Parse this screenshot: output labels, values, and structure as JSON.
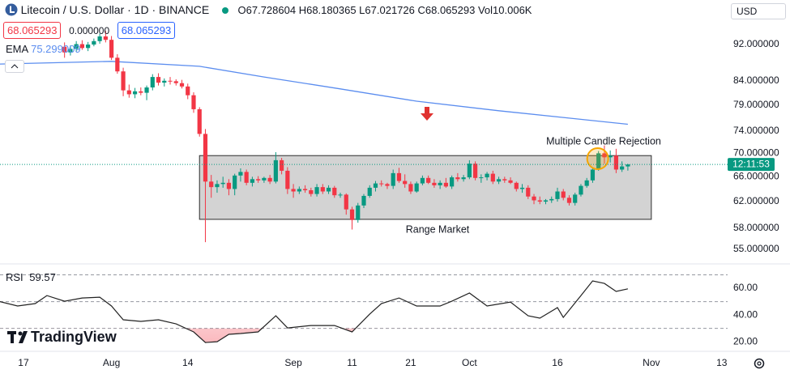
{
  "header": {
    "title": "Litecoin / U.S. Dollar · 1D · BINANCE",
    "ohlc_labels": [
      "O",
      "H",
      "L",
      "C",
      "Vol"
    ],
    "volume": "10.006K",
    "spread": {
      "value": 0,
      "label": "0.000000"
    },
    "currency": "USD",
    "countdown": "12:11:53",
    "brand": "TradingView"
  },
  "chart_data": [
    {
      "type": "candlestick",
      "log": true,
      "up_color": "#089981",
      "down_color": "#f23645",
      "xlim": [
        "07-13",
        "11-14"
      ],
      "xticks": [
        {
          "value": "07-17",
          "label": "17"
        },
        {
          "value": "08-01",
          "label": "Aug"
        },
        {
          "value": "08-14",
          "label": "14"
        },
        {
          "value": "09-01",
          "label": "Sep"
        },
        {
          "value": "09-11",
          "label": "11"
        },
        {
          "value": "09-21",
          "label": "21"
        },
        {
          "value": "10-01",
          "label": "Oct"
        },
        {
          "value": "10-16",
          "label": "16"
        },
        {
          "value": "11-01",
          "label": "Nov"
        },
        {
          "value": "11-13",
          "label": "13"
        }
      ],
      "ylim": [
        53.45,
        102.9
      ],
      "yticks": [
        {
          "value": 92,
          "label": "92.000000"
        },
        {
          "value": 84,
          "label": "84.000000"
        },
        {
          "value": 79,
          "label": "79.000000"
        },
        {
          "value": 74,
          "label": "74.000000"
        },
        {
          "value": 70,
          "label": "70.000000"
        },
        {
          "value": 66,
          "label": "66.000000"
        },
        {
          "value": 62,
          "label": "62.000000"
        },
        {
          "value": 58,
          "label": "58.000000"
        },
        {
          "value": 55,
          "label": "55.000000"
        }
      ],
      "x": [
        "07-24",
        "07-25",
        "07-26",
        "07-27",
        "07-28",
        "07-29",
        "07-30",
        "07-31",
        "08-01",
        "08-02",
        "08-03",
        "08-04",
        "08-05",
        "08-06",
        "08-07",
        "08-08",
        "08-09",
        "08-10",
        "08-11",
        "08-12",
        "08-13",
        "08-14",
        "08-15",
        "08-16",
        "08-17",
        "08-18",
        "08-19",
        "08-20",
        "08-21",
        "08-22",
        "08-23",
        "08-24",
        "08-25",
        "08-26",
        "08-27",
        "08-28",
        "08-29",
        "08-30",
        "08-31",
        "09-01",
        "09-02",
        "09-03",
        "09-04",
        "09-05",
        "09-06",
        "09-07",
        "09-08",
        "09-09",
        "09-10",
        "09-11",
        "09-12",
        "09-13",
        "09-14",
        "09-15",
        "09-16",
        "09-17",
        "09-18",
        "09-19",
        "09-20",
        "09-21",
        "09-22",
        "09-23",
        "09-24",
        "09-25",
        "09-26",
        "09-27",
        "09-28",
        "09-29",
        "09-30",
        "10-01",
        "10-02",
        "10-03",
        "10-04",
        "10-05",
        "10-06",
        "10-07",
        "10-08",
        "10-09",
        "10-10",
        "10-11",
        "10-12",
        "10-13",
        "10-14",
        "10-15",
        "10-16",
        "10-17",
        "10-18",
        "10-19",
        "10-20",
        "10-21",
        "10-22",
        "10-23",
        "10-24",
        "10-25",
        "10-26",
        "10-27",
        "10-28"
      ],
      "open": [
        91.5,
        90.2,
        91.0,
        92.1,
        91.2,
        92.0,
        92.8,
        93.9,
        93.1,
        89.0,
        86.0,
        82.0,
        81.2,
        81.8,
        81.5,
        82.6,
        84.8,
        83.6,
        84.0,
        83.9,
        83.5,
        82.8,
        81.0,
        78.2,
        73.5,
        65.2,
        64.3,
        64.8,
        65.0,
        64.0,
        66.2,
        66.8,
        65.0,
        65.6,
        65.4,
        65.8,
        65.2,
        68.8,
        67.0,
        64.0,
        63.6,
        64.0,
        63.8,
        63.2,
        64.3,
        63.6,
        64.2,
        63.0,
        63.1,
        60.8,
        59.2,
        61.4,
        62.9,
        64.2,
        64.9,
        64.8,
        64.5,
        66.6,
        65.3,
        64.8,
        63.6,
        64.9,
        65.8,
        65.0,
        64.6,
        65.0,
        64.4,
        65.9,
        65.6,
        65.9,
        68.2,
        65.8,
        65.9,
        66.5,
        65.2,
        65.6,
        65.4,
        65.0,
        64.0,
        64.2,
        62.8,
        62.2,
        62.0,
        62.2,
        62.4,
        63.6,
        62.6,
        61.8,
        63.1,
        64.5,
        65.4,
        67.2,
        70.0,
        69.3,
        69.6,
        67.2,
        67.728604
      ],
      "high": [
        92.5,
        91.8,
        92.8,
        93.0,
        92.6,
        93.4,
        94.6,
        95.2,
        94.0,
        89.8,
        86.8,
        83.2,
        82.5,
        82.6,
        83.0,
        85.4,
        85.6,
        84.5,
        84.8,
        84.3,
        84.2,
        83.4,
        81.6,
        78.6,
        74.4,
        66.3,
        65.4,
        66.0,
        65.6,
        66.5,
        67.4,
        67.2,
        66.0,
        66.1,
        66.0,
        66.3,
        70.2,
        69.2,
        67.6,
        64.8,
        64.4,
        64.6,
        64.2,
        64.8,
        64.8,
        64.6,
        64.5,
        63.4,
        63.3,
        61.2,
        61.8,
        63.2,
        64.6,
        65.3,
        65.4,
        65.0,
        67.2,
        67.5,
        66.4,
        65.2,
        65.2,
        66.2,
        66.2,
        65.6,
        65.4,
        65.8,
        66.2,
        66.6,
        66.3,
        68.8,
        68.6,
        66.4,
        66.8,
        67.0,
        66.0,
        66.0,
        65.9,
        65.2,
        64.8,
        64.6,
        63.2,
        62.8,
        62.4,
        62.8,
        64.2,
        64.0,
        63.0,
        63.4,
        64.8,
        65.8,
        67.6,
        70.4,
        71.4,
        70.5,
        70.8,
        68.6,
        68.180365
      ],
      "low": [
        89,
        89.5,
        90.4,
        90.8,
        90.5,
        91.6,
        92.2,
        92.5,
        88.5,
        85.5,
        80.8,
        80.5,
        80.4,
        81.0,
        80.0,
        82.0,
        83.0,
        82.8,
        83.2,
        83.0,
        82.4,
        80.2,
        77.5,
        73.0,
        56.0,
        62.6,
        63.4,
        64.2,
        63.0,
        63.0,
        65.2,
        64.6,
        64.4,
        65.0,
        65.0,
        64.8,
        64.9,
        66.4,
        63.2,
        62.6,
        63.2,
        63.4,
        62.8,
        62.8,
        63.2,
        63.2,
        62.6,
        62.6,
        60.0,
        57.8,
        58.8,
        61.0,
        62.6,
        63.6,
        64.4,
        64.0,
        64.0,
        65.0,
        64.2,
        63.2,
        63.4,
        64.6,
        64.8,
        64.2,
        64.0,
        64.2,
        64.0,
        65.2,
        65.2,
        65.6,
        65.4,
        65.0,
        65.4,
        64.8,
        64.8,
        65.0,
        64.8,
        63.6,
        63.4,
        62.4,
        61.6,
        61.6,
        61.6,
        61.8,
        62.0,
        62.2,
        61.4,
        61.4,
        62.8,
        64.2,
        65.0,
        67.0,
        68.2,
        68.4,
        66.6,
        66.8,
        67.021726
      ],
      "close": [
        90.2,
        91.0,
        92.1,
        91.2,
        92.0,
        92.8,
        93.9,
        93.1,
        89.0,
        86.0,
        82.0,
        81.2,
        81.8,
        81.5,
        82.6,
        84.8,
        83.6,
        84.0,
        83.9,
        83.5,
        82.8,
        81.0,
        78.2,
        73.5,
        65.2,
        64.3,
        64.8,
        65.0,
        64.0,
        66.2,
        66.8,
        65.0,
        65.6,
        65.4,
        65.8,
        65.2,
        68.8,
        67.0,
        64.0,
        63.6,
        64.0,
        63.8,
        63.2,
        64.3,
        63.6,
        64.2,
        63.0,
        63.1,
        60.8,
        59.2,
        61.4,
        62.9,
        64.2,
        64.9,
        64.8,
        64.5,
        66.6,
        65.3,
        64.8,
        63.6,
        64.9,
        65.8,
        65.0,
        64.6,
        65.0,
        64.4,
        65.9,
        65.6,
        65.9,
        68.2,
        65.8,
        65.9,
        66.5,
        65.2,
        65.6,
        65.4,
        65.0,
        64.0,
        64.2,
        62.8,
        62.2,
        62.0,
        62.2,
        62.4,
        63.6,
        62.6,
        61.8,
        63.1,
        64.5,
        65.4,
        67.2,
        70.0,
        69.3,
        69.6,
        67.2,
        67.728604,
        68.065293
      ],
      "ema": {
        "name": "EMA",
        "color": "#5b8def",
        "x": [
          "07-13",
          "08-01",
          "08-16",
          "08-27",
          "09-09",
          "09-22",
          "10-06",
          "10-17",
          "10-28"
        ],
        "values": [
          87.6,
          88.2,
          87.1,
          84.8,
          82.3,
          79.8,
          77.9,
          76.6,
          75.299009
        ]
      },
      "range_box": {
        "x": [
          "08-16",
          "11-01"
        ],
        "y": [
          59.3,
          69.6
        ]
      },
      "annotations": [
        "Multiple Candle Rejection",
        "Range Market"
      ]
    },
    {
      "type": "line",
      "name": "RSI",
      "color": "#222222",
      "xlim": [
        "07-13",
        "11-14"
      ],
      "ylim": [
        14,
        77
      ],
      "yticks": [
        {
          "value": 60,
          "label": "60.00"
        },
        {
          "value": 40,
          "label": "40.00"
        },
        {
          "value": 20,
          "label": "20.00"
        }
      ],
      "bands": [
        70,
        50,
        30
      ],
      "x": [
        "07-13",
        "07-16",
        "07-19",
        "07-21",
        "07-24",
        "07-27",
        "07-30",
        "08-01",
        "08-03",
        "08-06",
        "08-09",
        "08-12",
        "08-15",
        "08-17",
        "08-19",
        "08-21",
        "08-23",
        "08-26",
        "08-29",
        "08-31",
        "09-04",
        "09-08",
        "09-11",
        "09-14",
        "09-16",
        "09-19",
        "09-22",
        "09-26",
        "09-28",
        "10-01",
        "10-04",
        "10-08",
        "10-11",
        "10-13",
        "10-16",
        "10-17",
        "10-20",
        "10-22",
        "10-24",
        "10-26",
        "10-28"
      ],
      "values": [
        50,
        46.7,
        48.5,
        54.5,
        50.3,
        52.7,
        53.3,
        46.7,
        36.4,
        35.2,
        36.4,
        33.3,
        27.3,
        19.4,
        20,
        25.5,
        26.1,
        27.3,
        39.4,
        30.3,
        32.1,
        32.1,
        27.3,
        40.6,
        48.5,
        52.7,
        46.7,
        46.7,
        50.3,
        56.4,
        46.7,
        49.7,
        39.4,
        37.6,
        45.5,
        38.2,
        54.5,
        65.5,
        63.6,
        57.6,
        59.57
      ]
    }
  ]
}
